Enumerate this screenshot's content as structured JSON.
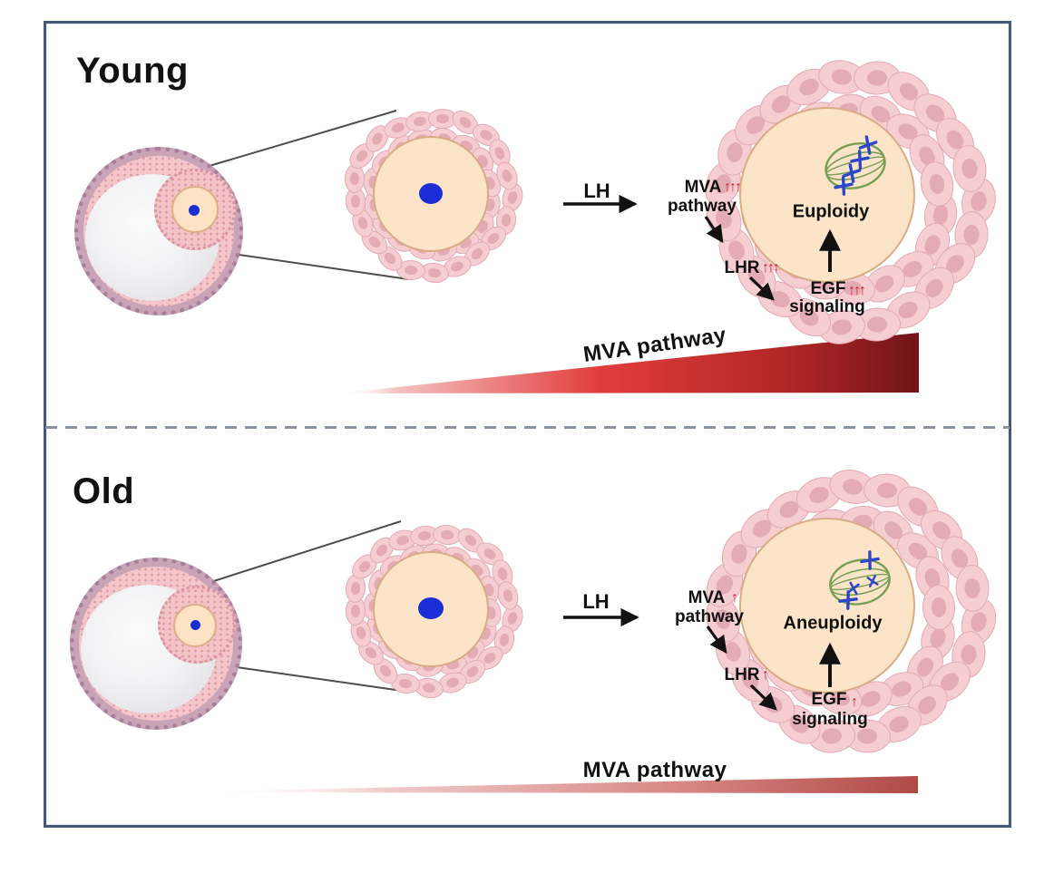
{
  "figure": {
    "type": "scientific-diagram",
    "description": "Young vs Old cumulus-oocyte complex, LH-induced MVA pathway signaling and oocyte ploidy",
    "divider_style": "dashed",
    "colors": {
      "frame": "#475a74",
      "divider_gray": "#8793a2",
      "text": "#111111",
      "red_arrow": "#c8202f",
      "gradient_dark": "#701418",
      "gradient_bright": "#e23d3d",
      "gradient_light": "#f5c2c2",
      "gradient_old_end": "#b04a47",
      "cell_fill": "#f6cdd1",
      "cell_border": "#e3aab3",
      "cell_nucleus": "#dfa2ab",
      "oocyte_fill": "#fce4c8",
      "oocyte_border": "#d8ac84",
      "nucleolus_blue": "#1b2ed6",
      "spindle_green": "#76a054",
      "chromosome_blue": "#2b46c8",
      "follicle_theca": "#c9a4b6",
      "follicle_theca_border": "#a87f9b",
      "granulosa_pink": "#f4c6ca",
      "antrum_gray": "#ededf0",
      "zoom_line_gray": "#4d4d4d"
    },
    "panels": [
      {
        "title": "Young",
        "stimulus_label": "LH",
        "mva_word1": "MVA",
        "mva_word2": "pathway",
        "mva_arrows": "↑↑↑",
        "lhr_label": "LHR",
        "lhr_arrows": "↑↑↑",
        "egf_label": "EGF",
        "egf_arrows": "↑↑↑",
        "signaling_word": "signaling",
        "ploidy_label": "Euploidy",
        "chromosome_state": "aligned",
        "gradient_label": "MVA pathway"
      },
      {
        "title": "Old",
        "stimulus_label": "LH",
        "mva_word1": "MVA",
        "mva_word2": "pathway",
        "mva_arrows": "↑",
        "lhr_label": "LHR",
        "lhr_arrows": "↑",
        "egf_label": "EGF",
        "egf_arrows": "↑",
        "signaling_word": "signaling",
        "ploidy_label": "Aneuploidy",
        "chromosome_state": "misaligned",
        "gradient_label": "MVA pathway"
      }
    ]
  }
}
